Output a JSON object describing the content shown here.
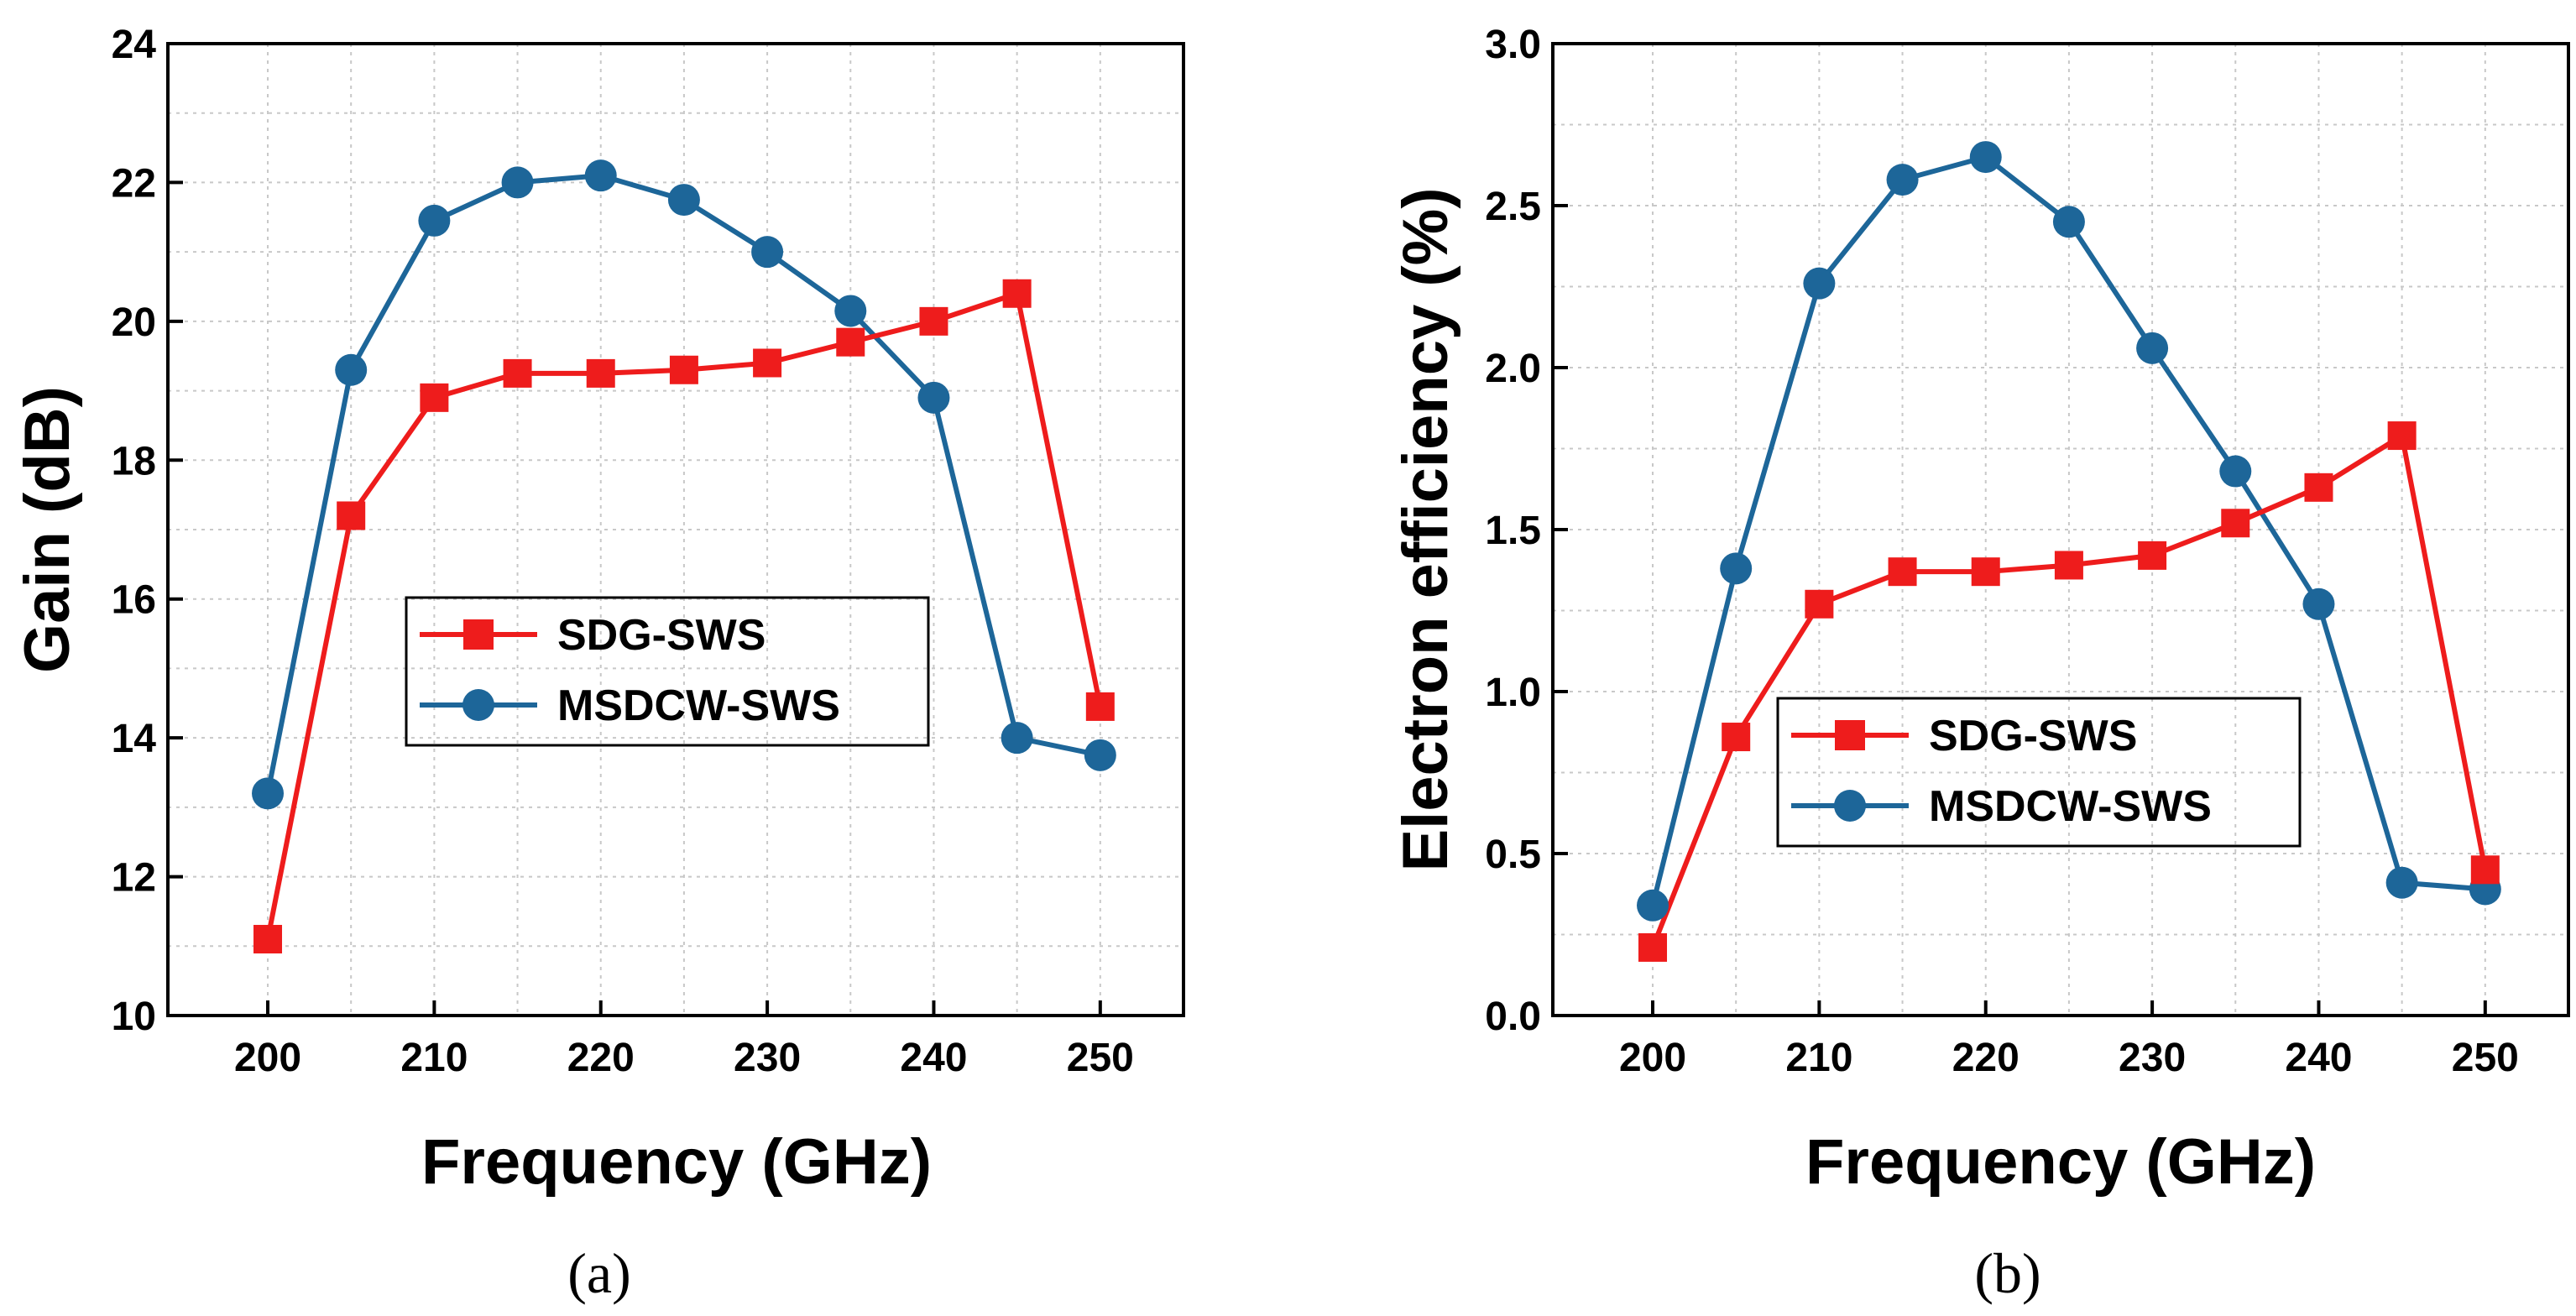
{
  "chart_data": [
    {
      "type": "line",
      "panel": "(a)",
      "title": "",
      "xlabel": "Frequency (GHz)",
      "ylabel": "Gain (dB)",
      "x": [
        200,
        205,
        210,
        215,
        220,
        225,
        230,
        235,
        240,
        245,
        250
      ],
      "xlim": [
        194,
        255
      ],
      "ylim": [
        10,
        24
      ],
      "xticks": [
        200,
        210,
        220,
        230,
        240,
        250
      ],
      "yticks": [
        10,
        12,
        14,
        16,
        18,
        20,
        22,
        24
      ],
      "ytick_labels": [
        "10",
        "12",
        "14",
        "16",
        "18",
        "20",
        "22",
        "24"
      ],
      "grid": true,
      "legend_position": "center",
      "series": [
        {
          "name": "SDG-SWS",
          "marker": "square",
          "color": "#ee1c1c",
          "values": [
            11.1,
            17.2,
            18.9,
            19.25,
            19.25,
            19.3,
            19.4,
            19.7,
            20.0,
            20.4,
            14.45
          ]
        },
        {
          "name": "MSDCW-SWS",
          "marker": "circle",
          "color": "#1d6699",
          "values": [
            13.2,
            19.3,
            21.45,
            22.0,
            22.1,
            21.75,
            21.0,
            20.15,
            18.9,
            14.0,
            13.75
          ]
        }
      ]
    },
    {
      "type": "line",
      "panel": "(b)",
      "title": "",
      "xlabel": "Frequency (GHz)",
      "ylabel": "Electron efficiency (%)",
      "x": [
        200,
        205,
        210,
        215,
        220,
        225,
        230,
        235,
        240,
        245,
        250
      ],
      "xlim": [
        194,
        255
      ],
      "ylim": [
        0,
        3
      ],
      "xticks": [
        200,
        210,
        220,
        230,
        240,
        250
      ],
      "yticks": [
        0,
        0.5,
        1.0,
        1.5,
        2.0,
        2.5,
        3.0
      ],
      "ytick_labels": [
        "0.0",
        "0.5",
        "1.0",
        "1.5",
        "2.0",
        "2.5",
        "3.0"
      ],
      "grid": true,
      "legend_position": "center-right",
      "series": [
        {
          "name": "SDG-SWS",
          "marker": "square",
          "color": "#ee1c1c",
          "values": [
            0.21,
            0.86,
            1.27,
            1.37,
            1.37,
            1.39,
            1.42,
            1.52,
            1.63,
            1.79,
            0.45
          ]
        },
        {
          "name": "MSDCW-SWS",
          "marker": "circle",
          "color": "#1d6699",
          "values": [
            0.34,
            1.38,
            2.26,
            2.58,
            2.65,
            2.45,
            2.06,
            1.68,
            1.27,
            0.41,
            0.39
          ]
        }
      ]
    }
  ]
}
